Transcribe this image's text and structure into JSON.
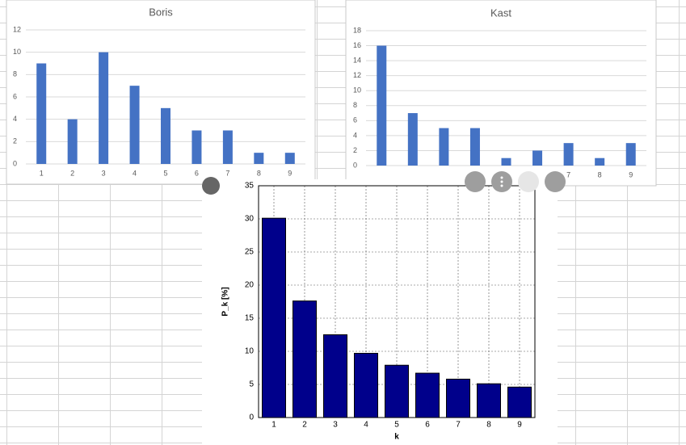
{
  "chart_data": [
    {
      "type": "bar",
      "title": "Boris",
      "categories": [
        "1",
        "2",
        "3",
        "4",
        "5",
        "6",
        "7",
        "8",
        "9"
      ],
      "values": [
        9,
        4,
        10,
        7,
        5,
        3,
        3,
        1,
        1
      ],
      "color": "#4472c4",
      "ylim": [
        0,
        12
      ],
      "yticks": [
        0,
        2,
        4,
        6,
        8,
        10,
        12
      ],
      "grid": true
    },
    {
      "type": "bar",
      "title": "Kast",
      "categories": [
        null,
        null,
        null,
        null,
        null,
        null,
        "7",
        "8",
        "9"
      ],
      "values": [
        16,
        7,
        5,
        5,
        1,
        2,
        3,
        1,
        3
      ],
      "color": "#4472c4",
      "ylim": [
        0,
        18
      ],
      "yticks": [
        0,
        2,
        4,
        6,
        8,
        10,
        12,
        14,
        16,
        18
      ],
      "grid": true
    },
    {
      "type": "bar",
      "categories": [
        "1",
        "2",
        "3",
        "4",
        "5",
        "6",
        "7",
        "8",
        "9"
      ],
      "values": [
        30.1,
        17.6,
        12.5,
        9.7,
        7.9,
        6.7,
        5.8,
        5.1,
        4.6
      ],
      "color": "#00008b",
      "edgecolor": "#000000",
      "ylim": [
        0,
        35
      ],
      "yticks": [
        0,
        5,
        10,
        15,
        20,
        25,
        30,
        35
      ],
      "grid": true,
      "xlabel": "k",
      "ylabel": "P_k [%]"
    }
  ]
}
